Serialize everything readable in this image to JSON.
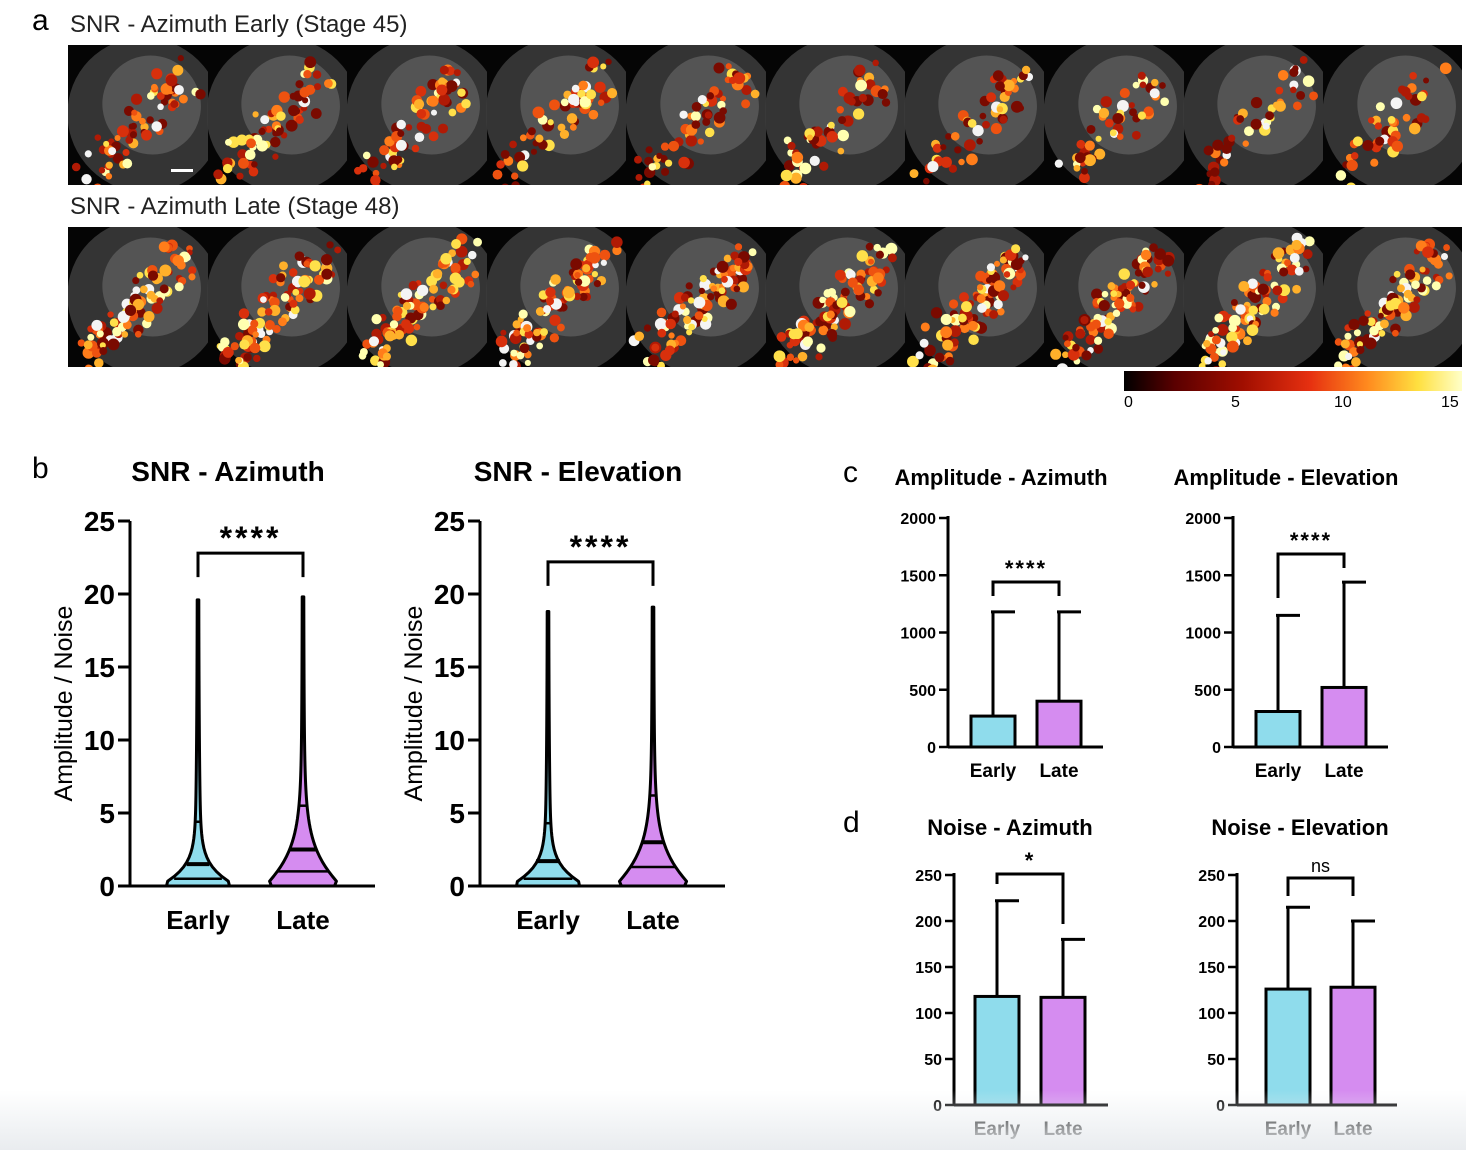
{
  "colors": {
    "early": "#8fdcec",
    "late": "#d58cf0",
    "axis": "#000000"
  },
  "panel_a": {
    "letter": "a",
    "row1_title": "SNR - Azimuth Early (Stage 45)",
    "row2_title": "SNR - Azimuth Late (Stage 48)",
    "tile_count": 10,
    "colorbar": {
      "ticks": [
        "0",
        "5",
        "10",
        "15"
      ],
      "min": 0,
      "max": 15
    }
  },
  "panel_b": {
    "letter": "b"
  },
  "panel_c": {
    "letter": "c"
  },
  "panel_d": {
    "letter": "d"
  },
  "chart_data": [
    {
      "id": "snr-azimuth",
      "type": "violin",
      "panel": "b",
      "title": "SNR - Azimuth",
      "ylabel": "Amplitude / Noise",
      "xlabel": "",
      "ylim": [
        0,
        25
      ],
      "yticks": [
        "0",
        "5",
        "10",
        "15",
        "20",
        "25"
      ],
      "categories": [
        "Early",
        "Late"
      ],
      "series": [
        {
          "name": "Early",
          "max": 19.6,
          "q1": 0.5,
          "median": 1.5,
          "q3": 4.4
        },
        {
          "name": "Late",
          "max": 19.8,
          "q1": 1.0,
          "median": 2.5,
          "q3": 5.5
        }
      ],
      "significance": "****"
    },
    {
      "id": "snr-elevation",
      "type": "violin",
      "panel": "b",
      "title": "SNR - Elevation",
      "ylabel": "Amplitude / Noise",
      "xlabel": "",
      "ylim": [
        0,
        25
      ],
      "yticks": [
        "0",
        "5",
        "10",
        "15",
        "20",
        "25"
      ],
      "categories": [
        "Early",
        "Late"
      ],
      "series": [
        {
          "name": "Early",
          "max": 18.8,
          "q1": 0.5,
          "median": 1.7,
          "q3": 4.3
        },
        {
          "name": "Late",
          "max": 19.1,
          "q1": 1.3,
          "median": 3.0,
          "q3": 6.2
        }
      ],
      "significance": "****"
    },
    {
      "id": "amplitude-azimuth",
      "type": "bar",
      "panel": "c",
      "title": "Amplitude - Azimuth",
      "ylim": [
        0,
        2000
      ],
      "yticks": [
        "0",
        "500",
        "1000",
        "1500",
        "2000"
      ],
      "categories": [
        "Early",
        "Late"
      ],
      "values": [
        270,
        400
      ],
      "error_upper": [
        1180,
        1180
      ],
      "significance": "****"
    },
    {
      "id": "amplitude-elevation",
      "type": "bar",
      "panel": "c",
      "title": "Amplitude - Elevation",
      "ylim": [
        0,
        2000
      ],
      "yticks": [
        "0",
        "500",
        "1000",
        "1500",
        "2000"
      ],
      "categories": [
        "Early",
        "Late"
      ],
      "values": [
        310,
        520
      ],
      "error_upper": [
        1150,
        1440
      ],
      "significance": "****"
    },
    {
      "id": "noise-azimuth",
      "type": "bar",
      "panel": "d",
      "title": "Noise - Azimuth",
      "ylim": [
        0,
        250
      ],
      "yticks": [
        "0",
        "50",
        "100",
        "150",
        "200",
        "250"
      ],
      "categories": [
        "Early",
        "Late"
      ],
      "values": [
        118,
        117
      ],
      "error_upper": [
        222,
        180
      ],
      "significance": "*"
    },
    {
      "id": "noise-elevation",
      "type": "bar",
      "panel": "d",
      "title": "Noise - Elevation",
      "ylim": [
        0,
        250
      ],
      "yticks": [
        "0",
        "50",
        "100",
        "150",
        "200",
        "250"
      ],
      "categories": [
        "Early",
        "Late"
      ],
      "values": [
        126,
        128
      ],
      "error_upper": [
        215,
        200
      ],
      "significance": "ns"
    }
  ]
}
